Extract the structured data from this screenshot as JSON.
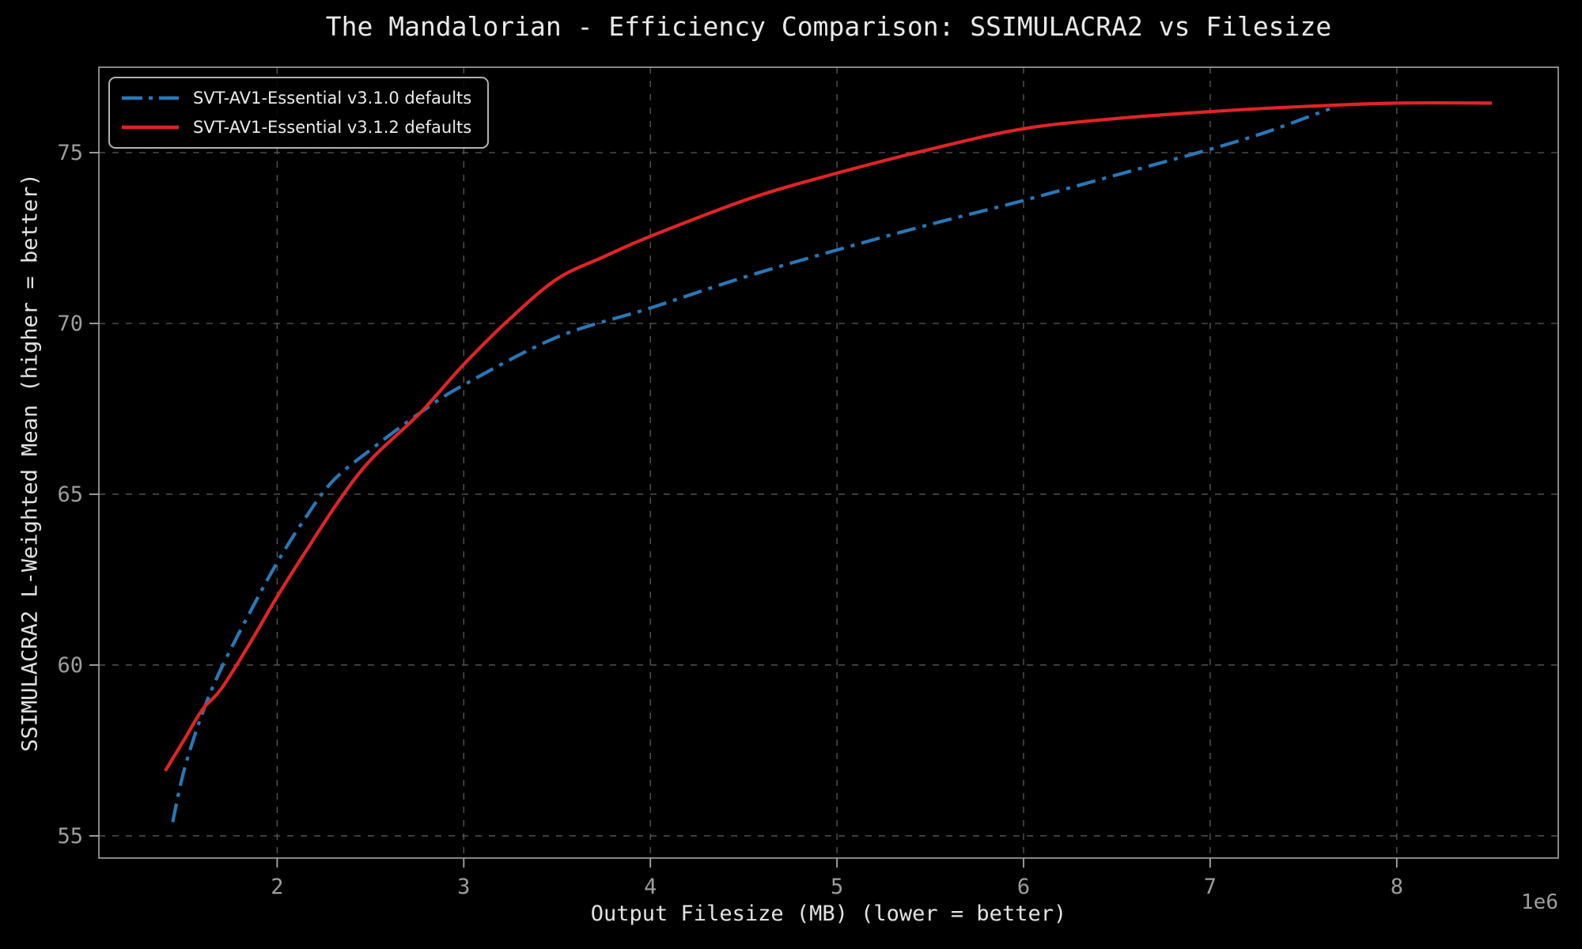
{
  "chart": {
    "title": "The Mandalorian - Efficiency Comparison: SSIMULACRA2 vs Filesize",
    "xlabel": "Output Filesize (MB) (lower = better)",
    "ylabel": "SSIMULACRA2 L-Weighted Mean (higher = better)",
    "offset_text": "1e6"
  },
  "colors": {
    "background": "#000000",
    "grid": "#5a5a5a",
    "spine": "#a8a8a8",
    "tick_label": "#9e9e9e",
    "text": "#e9e9e9",
    "series_blue": "#2878b8",
    "series_red": "#e02427"
  },
  "chart_data": {
    "type": "line",
    "title": "The Mandalorian - Efficiency Comparison: SSIMULACRA2 vs Filesize",
    "xlabel": "Output Filesize (MB) (lower = better)",
    "ylabel": "SSIMULACRA2 L-Weighted Mean (higher = better)",
    "x_offset_multiplier": "1e6",
    "xlim": [
      1044500,
      8865500
    ],
    "ylim": [
      54.35,
      77.5
    ],
    "x_ticks": [
      2000000,
      3000000,
      4000000,
      5000000,
      6000000,
      7000000,
      8000000
    ],
    "x_tick_labels": [
      "2",
      "3",
      "4",
      "5",
      "6",
      "7",
      "8"
    ],
    "y_ticks": [
      55,
      60,
      65,
      70,
      75
    ],
    "y_tick_labels": [
      "55",
      "60",
      "65",
      "70",
      "75"
    ],
    "grid": true,
    "grid_style": "dashed",
    "legend_position": "upper left",
    "series": [
      {
        "name": "SVT-AV1-Essential v3.1.0 defaults",
        "color": "#2878b8",
        "style": "dashdot",
        "x": [
          1440000,
          1500000,
          1600000,
          1700000,
          1850000,
          2000000,
          2150000,
          2300000,
          2500000,
          2770000,
          3000000,
          3500000,
          4000000,
          4500000,
          5000000,
          5500000,
          6000000,
          6500000,
          7000000,
          7300000,
          7640000
        ],
        "y": [
          55.4,
          56.9,
          58.6,
          59.9,
          61.5,
          63.0,
          64.3,
          65.4,
          66.3,
          67.4,
          68.2,
          69.6,
          70.45,
          71.35,
          72.15,
          72.9,
          73.6,
          74.35,
          75.1,
          75.6,
          76.28
        ]
      },
      {
        "name": "SVT-AV1-Essential v3.1.2 defaults",
        "color": "#e02427",
        "style": "solid",
        "x": [
          1400000,
          1500000,
          1600000,
          1700000,
          1850000,
          2000000,
          2150000,
          2330000,
          2500000,
          2770000,
          3000000,
          3250000,
          3500000,
          3750000,
          4000000,
          4530000,
          5000000,
          5500000,
          6000000,
          6500000,
          7000000,
          7500000,
          8000000,
          8510000
        ],
        "y": [
          56.9,
          57.8,
          58.7,
          59.3,
          60.6,
          62.0,
          63.3,
          64.8,
          66.0,
          67.4,
          68.8,
          70.15,
          71.3,
          71.95,
          72.55,
          73.65,
          74.4,
          75.1,
          75.7,
          76.0,
          76.2,
          76.35,
          76.45,
          76.45
        ]
      }
    ]
  }
}
